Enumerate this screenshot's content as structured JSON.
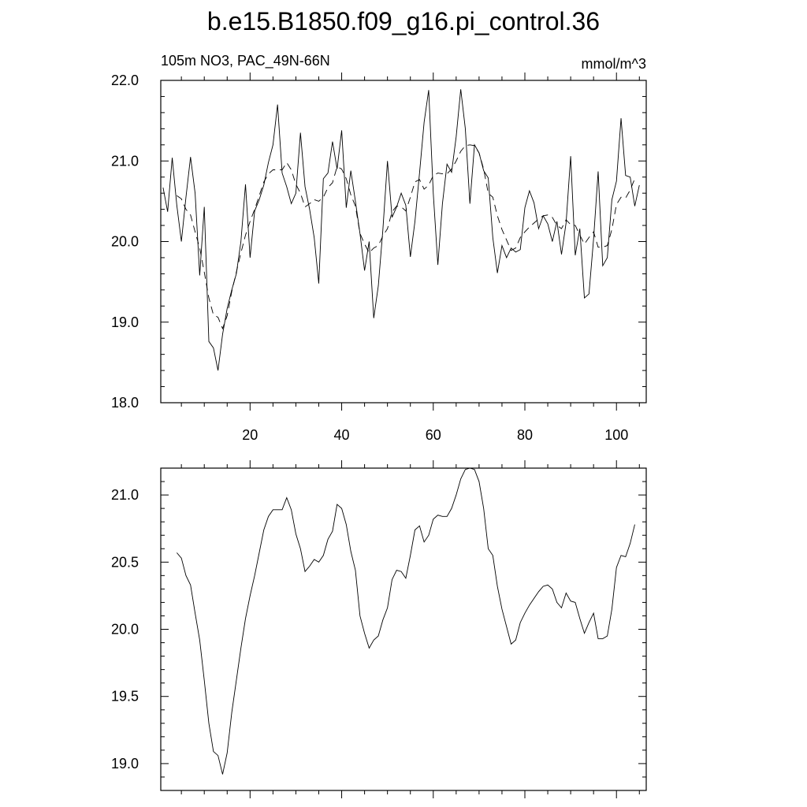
{
  "title": "b.e15.B1850.f09_g16.pi_control.36",
  "left_string": "105m NO3, PAC_49N-66N",
  "right_string": "mmol/m^3",
  "chart_data": [
    {
      "type": "line",
      "xlim": [
        0.5,
        106.5
      ],
      "ylim": [
        18.0,
        22.0
      ],
      "xticks": [
        20,
        40,
        60,
        80,
        100
      ],
      "xtick_labels": [
        "20",
        "40",
        "60",
        "80",
        "100"
      ],
      "yticks": [
        18.0,
        19.0,
        20.0,
        21.0,
        22.0
      ],
      "ytick_labels": [
        "18.0",
        "19.0",
        "20.0",
        "21.0",
        "22.0"
      ],
      "grid": false,
      "series": [
        {
          "style": "solid",
          "x_start": 1,
          "values": [
            20.67,
            20.37,
            21.04,
            20.45,
            20.0,
            20.55,
            21.05,
            20.6,
            19.58,
            20.43,
            18.76,
            18.68,
            18.4,
            18.85,
            19.17,
            19.4,
            19.6,
            20.0,
            20.71,
            19.8,
            20.38,
            20.52,
            20.7,
            20.98,
            21.2,
            21.7,
            20.85,
            20.68,
            20.47,
            20.6,
            21.35,
            20.68,
            20.4,
            20.05,
            19.48,
            20.78,
            20.85,
            21.24,
            20.9,
            21.38,
            20.42,
            20.88,
            20.5,
            20.1,
            19.64,
            20.0,
            19.05,
            19.45,
            20.15,
            21.0,
            20.3,
            20.43,
            20.6,
            20.45,
            19.81,
            20.25,
            20.85,
            21.48,
            21.88,
            20.6,
            19.71,
            20.47,
            20.96,
            20.86,
            21.3,
            21.89,
            21.4,
            20.47,
            21.2,
            21.1,
            20.88,
            20.79,
            20.05,
            19.61,
            19.95,
            19.8,
            19.92,
            19.87,
            19.9,
            20.42,
            20.63,
            20.48,
            20.16,
            20.32,
            20.22,
            20.0,
            20.25,
            19.84,
            20.23,
            21.06,
            19.83,
            20.16,
            19.3,
            19.35,
            20.03,
            20.87,
            19.7,
            19.8,
            20.52,
            20.75,
            21.53,
            20.82,
            20.8,
            20.44,
            20.7
          ]
        },
        {
          "style": "dashed",
          "x_start": 4,
          "values": [
            20.57,
            20.53,
            20.4,
            20.33,
            20.12,
            19.92,
            19.62,
            19.3,
            19.09,
            19.06,
            18.92,
            19.08,
            19.38,
            19.62,
            19.86,
            20.08,
            20.25,
            20.4,
            20.57,
            20.74,
            20.84,
            20.89,
            20.89,
            20.89,
            20.98,
            20.89,
            20.71,
            20.6,
            20.43,
            20.47,
            20.52,
            20.5,
            20.55,
            20.67,
            20.73,
            20.93,
            20.9,
            20.78,
            20.58,
            20.44,
            20.1,
            19.97,
            19.86,
            19.92,
            19.95,
            20.07,
            20.16,
            20.37,
            20.44,
            20.43,
            20.38,
            20.55,
            20.74,
            20.77,
            20.65,
            20.7,
            20.82,
            20.85,
            20.84,
            20.84,
            20.9,
            21.0,
            21.12,
            21.19,
            21.2,
            21.19,
            21.1,
            20.9,
            20.6,
            20.55,
            20.32,
            20.15,
            20.02,
            19.89,
            19.92,
            20.05,
            20.12,
            20.18,
            20.23,
            20.28,
            20.32,
            20.33,
            20.3,
            20.2,
            20.16,
            20.27,
            20.21,
            20.2,
            20.08,
            19.97,
            20.05,
            20.12,
            19.93,
            19.93,
            19.95,
            20.15,
            20.46,
            20.55,
            20.54,
            20.64,
            20.78
          ]
        }
      ]
    },
    {
      "type": "line",
      "xlim": [
        0.5,
        106.5
      ],
      "ylim": [
        18.8,
        21.2
      ],
      "xticks": [
        20,
        40,
        60,
        80,
        100
      ],
      "yticks": [
        19.0,
        19.5,
        20.0,
        20.5,
        21.0
      ],
      "ytick_labels": [
        "19.0",
        "19.5",
        "20.0",
        "20.5",
        "21.0"
      ],
      "grid": false,
      "series": [
        {
          "style": "solid",
          "x_start": 4,
          "values": [
            20.57,
            20.53,
            20.4,
            20.33,
            20.12,
            19.92,
            19.62,
            19.3,
            19.09,
            19.06,
            18.92,
            19.08,
            19.38,
            19.62,
            19.86,
            20.08,
            20.25,
            20.4,
            20.57,
            20.74,
            20.84,
            20.89,
            20.89,
            20.89,
            20.98,
            20.89,
            20.71,
            20.6,
            20.43,
            20.47,
            20.52,
            20.5,
            20.55,
            20.67,
            20.73,
            20.93,
            20.9,
            20.78,
            20.58,
            20.44,
            20.1,
            19.97,
            19.86,
            19.92,
            19.95,
            20.07,
            20.16,
            20.37,
            20.44,
            20.43,
            20.38,
            20.55,
            20.74,
            20.77,
            20.65,
            20.7,
            20.82,
            20.85,
            20.84,
            20.84,
            20.9,
            21.0,
            21.12,
            21.19,
            21.2,
            21.19,
            21.1,
            20.9,
            20.6,
            20.55,
            20.32,
            20.15,
            20.02,
            19.89,
            19.92,
            20.05,
            20.12,
            20.18,
            20.23,
            20.28,
            20.32,
            20.33,
            20.3,
            20.2,
            20.16,
            20.27,
            20.21,
            20.2,
            20.08,
            19.97,
            20.05,
            20.12,
            19.93,
            19.93,
            19.95,
            20.15,
            20.46,
            20.55,
            20.54,
            20.64,
            20.78
          ]
        }
      ]
    }
  ]
}
